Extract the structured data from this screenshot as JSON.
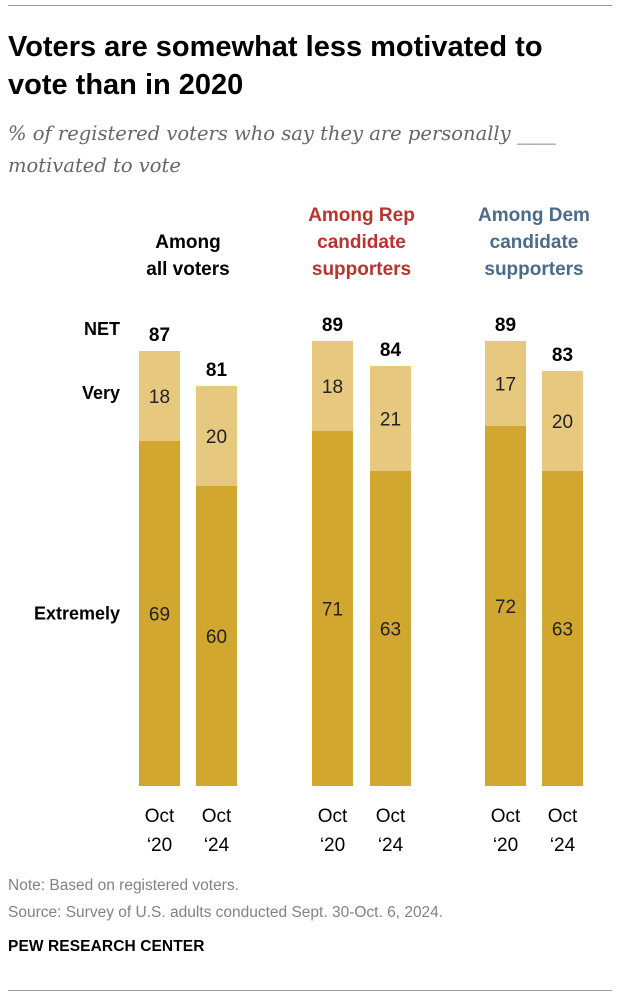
{
  "title": "Voters are somewhat less motivated to vote than in 2020",
  "subtitle": "% of registered voters who say they are personally ____ motivated to vote",
  "note": "Note: Based on registered voters.",
  "source": "Source: Survey of U.S. adults conducted Sept. 30-Oct. 6, 2024.",
  "credit": "PEW RESEARCH CENTER",
  "colors": {
    "extremely": "#d2a730",
    "very": "#e6c97e",
    "rep": "#b8342c",
    "dem": "#4a6b8a",
    "text": "#000000"
  },
  "chart_data": {
    "type": "bar",
    "stacked": true,
    "row_labels": {
      "net": "NET",
      "very": "Very",
      "extremely": "Extremely"
    },
    "groups": [
      {
        "label": [
          "Among",
          "all voters"
        ],
        "color": "#000000",
        "bars": [
          {
            "period": [
              "Oct",
              "‘20"
            ],
            "extremely": 69,
            "very": 18,
            "net": 87
          },
          {
            "period": [
              "Oct",
              "‘24"
            ],
            "extremely": 60,
            "very": 20,
            "net": 81
          }
        ]
      },
      {
        "label": [
          "Among Rep",
          "candidate",
          "supporters"
        ],
        "color": "#b8342c",
        "bars": [
          {
            "period": [
              "Oct",
              "‘20"
            ],
            "extremely": 71,
            "very": 18,
            "net": 89
          },
          {
            "period": [
              "Oct",
              "‘24"
            ],
            "extremely": 63,
            "very": 21,
            "net": 84
          }
        ]
      },
      {
        "label": [
          "Among Dem",
          "candidate",
          "supporters"
        ],
        "color": "#4a6b8a",
        "bars": [
          {
            "period": [
              "Oct",
              "‘20"
            ],
            "extremely": 72,
            "very": 17,
            "net": 89
          },
          {
            "period": [
              "Oct",
              "‘24"
            ],
            "extremely": 63,
            "very": 20,
            "net": 83
          }
        ]
      }
    ]
  }
}
